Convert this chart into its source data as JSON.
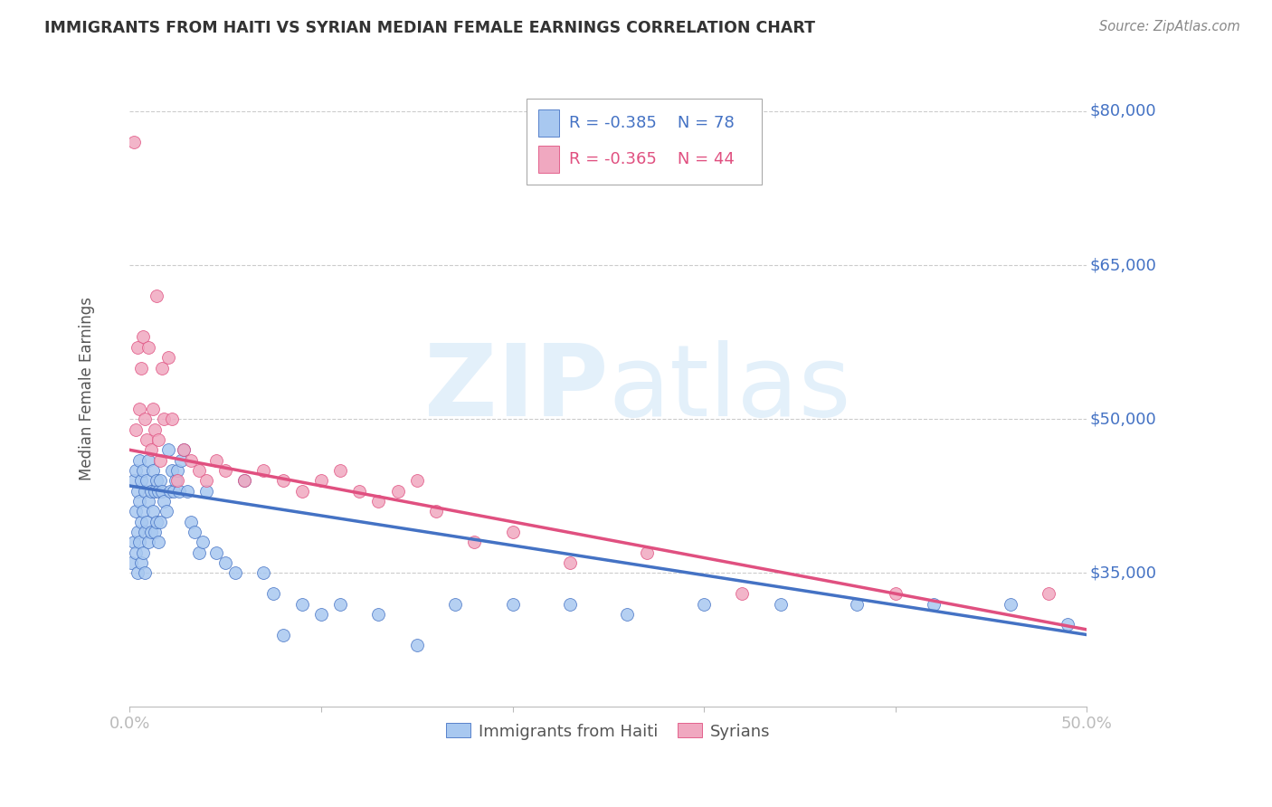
{
  "title": "IMMIGRANTS FROM HAITI VS SYRIAN MEDIAN FEMALE EARNINGS CORRELATION CHART",
  "source": "Source: ZipAtlas.com",
  "ylabel": "Median Female Earnings",
  "ytick_labels": [
    "$80,000",
    "$65,000",
    "$50,000",
    "$35,000"
  ],
  "ytick_values": [
    80000,
    65000,
    50000,
    35000
  ],
  "ylim": [
    22000,
    84000
  ],
  "xlim": [
    0.0,
    0.5
  ],
  "watermark_zip": "ZIP",
  "watermark_atlas": "atlas",
  "legend_r_haiti": "-0.385",
  "legend_n_haiti": "78",
  "legend_r_syrian": "-0.365",
  "legend_n_syrian": "44",
  "color_haiti": "#A8C8F0",
  "color_syrian": "#F0A8C0",
  "color_trendline_haiti": "#4472C4",
  "color_trendline_syrian": "#E05080",
  "color_axis": "#4472C4",
  "haiti_x": [
    0.001,
    0.002,
    0.002,
    0.003,
    0.003,
    0.003,
    0.004,
    0.004,
    0.004,
    0.005,
    0.005,
    0.005,
    0.006,
    0.006,
    0.006,
    0.007,
    0.007,
    0.007,
    0.008,
    0.008,
    0.008,
    0.009,
    0.009,
    0.01,
    0.01,
    0.01,
    0.011,
    0.011,
    0.012,
    0.012,
    0.013,
    0.013,
    0.014,
    0.014,
    0.015,
    0.015,
    0.016,
    0.016,
    0.017,
    0.018,
    0.019,
    0.02,
    0.021,
    0.022,
    0.023,
    0.024,
    0.025,
    0.026,
    0.027,
    0.028,
    0.03,
    0.032,
    0.034,
    0.036,
    0.038,
    0.04,
    0.045,
    0.05,
    0.055,
    0.06,
    0.07,
    0.075,
    0.08,
    0.09,
    0.1,
    0.11,
    0.13,
    0.15,
    0.17,
    0.2,
    0.23,
    0.26,
    0.3,
    0.34,
    0.38,
    0.42,
    0.46,
    0.49
  ],
  "haiti_y": [
    36000,
    44000,
    38000,
    45000,
    41000,
    37000,
    43000,
    39000,
    35000,
    46000,
    42000,
    38000,
    44000,
    40000,
    36000,
    45000,
    41000,
    37000,
    43000,
    39000,
    35000,
    44000,
    40000,
    46000,
    42000,
    38000,
    43000,
    39000,
    45000,
    41000,
    43000,
    39000,
    44000,
    40000,
    43000,
    38000,
    44000,
    40000,
    43000,
    42000,
    41000,
    47000,
    43000,
    45000,
    43000,
    44000,
    45000,
    43000,
    46000,
    47000,
    43000,
    40000,
    39000,
    37000,
    38000,
    43000,
    37000,
    36000,
    35000,
    44000,
    35000,
    33000,
    29000,
    32000,
    31000,
    32000,
    31000,
    28000,
    32000,
    32000,
    32000,
    31000,
    32000,
    32000,
    32000,
    32000,
    32000,
    30000
  ],
  "syrian_x": [
    0.002,
    0.003,
    0.004,
    0.005,
    0.006,
    0.007,
    0.008,
    0.009,
    0.01,
    0.011,
    0.012,
    0.013,
    0.014,
    0.015,
    0.016,
    0.017,
    0.018,
    0.02,
    0.022,
    0.025,
    0.028,
    0.032,
    0.036,
    0.04,
    0.045,
    0.05,
    0.06,
    0.07,
    0.08,
    0.09,
    0.1,
    0.11,
    0.12,
    0.13,
    0.14,
    0.15,
    0.16,
    0.18,
    0.2,
    0.23,
    0.27,
    0.32,
    0.4,
    0.48
  ],
  "syrian_y": [
    77000,
    49000,
    57000,
    51000,
    55000,
    58000,
    50000,
    48000,
    57000,
    47000,
    51000,
    49000,
    62000,
    48000,
    46000,
    55000,
    50000,
    56000,
    50000,
    44000,
    47000,
    46000,
    45000,
    44000,
    46000,
    45000,
    44000,
    45000,
    44000,
    43000,
    44000,
    45000,
    43000,
    42000,
    43000,
    44000,
    41000,
    38000,
    39000,
    36000,
    37000,
    33000,
    33000,
    33000
  ]
}
